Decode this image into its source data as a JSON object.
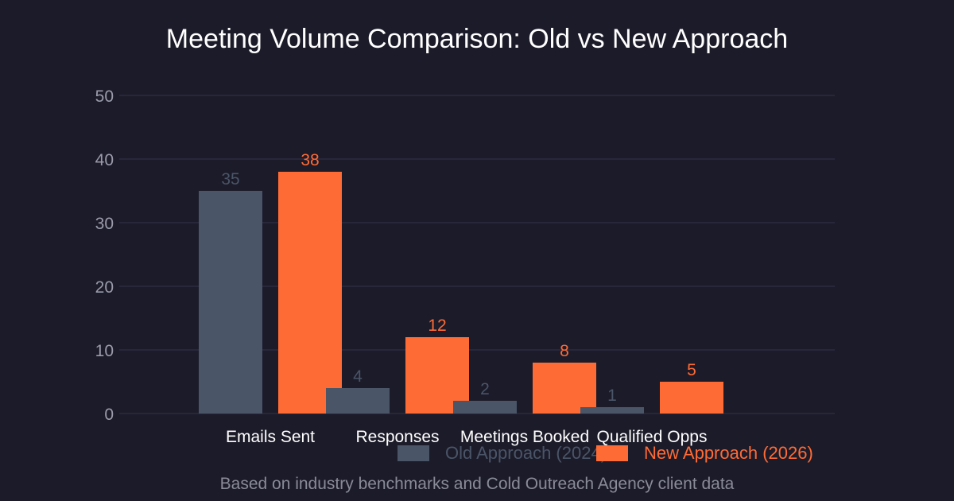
{
  "chart_data": {
    "type": "bar",
    "title": "Meeting Volume Comparison: Old vs New Approach",
    "categories": [
      "Emails Sent",
      "Responses",
      "Meetings Booked",
      "Qualified Opps"
    ],
    "series": [
      {
        "name": "Old Approach (2024)",
        "values": [
          35,
          4,
          2,
          1
        ],
        "color": "#4a5568"
      },
      {
        "name": "New Approach (2026)",
        "values": [
          38,
          12,
          8,
          5
        ],
        "color": "#ff6b35"
      }
    ],
    "ylim": [
      0,
      50
    ],
    "yticks": [
      0,
      10,
      20,
      30,
      40,
      50
    ],
    "xlabel": "",
    "ylabel": "",
    "grid": true,
    "legend_position": "bottom-right"
  },
  "colors": {
    "background": "#1c1b29",
    "grid": "#33334a",
    "tick_text": "#9a9bab",
    "category_text": "#ffffff"
  },
  "footer": "Based on industry benchmarks and Cold Outreach Agency client data"
}
